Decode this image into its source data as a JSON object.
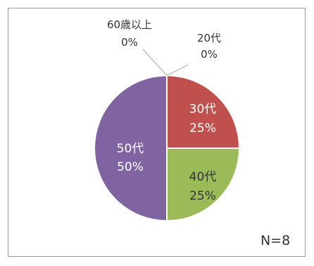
{
  "chart_data": {
    "type": "pie",
    "slices": [
      {
        "label": "60歳以上",
        "value": 0,
        "percent_label": "0%",
        "color": "#4f81bd"
      },
      {
        "label": "20代",
        "value": 0,
        "percent_label": "0%",
        "color": "#1f497d"
      },
      {
        "label": "30代",
        "value": 25,
        "percent_label": "25%",
        "color": "#c0504d"
      },
      {
        "label": "40代",
        "value": 25,
        "percent_label": "25%",
        "color": "#9bbb59"
      },
      {
        "label": "50代",
        "value": 50,
        "percent_label": "50%",
        "color": "#8064a2"
      }
    ],
    "n_label": "N=8",
    "legend": "none",
    "label_text_colors": {
      "inside_dark": "#ffffff",
      "inside_light": "#333333",
      "outside": "#333333"
    }
  }
}
